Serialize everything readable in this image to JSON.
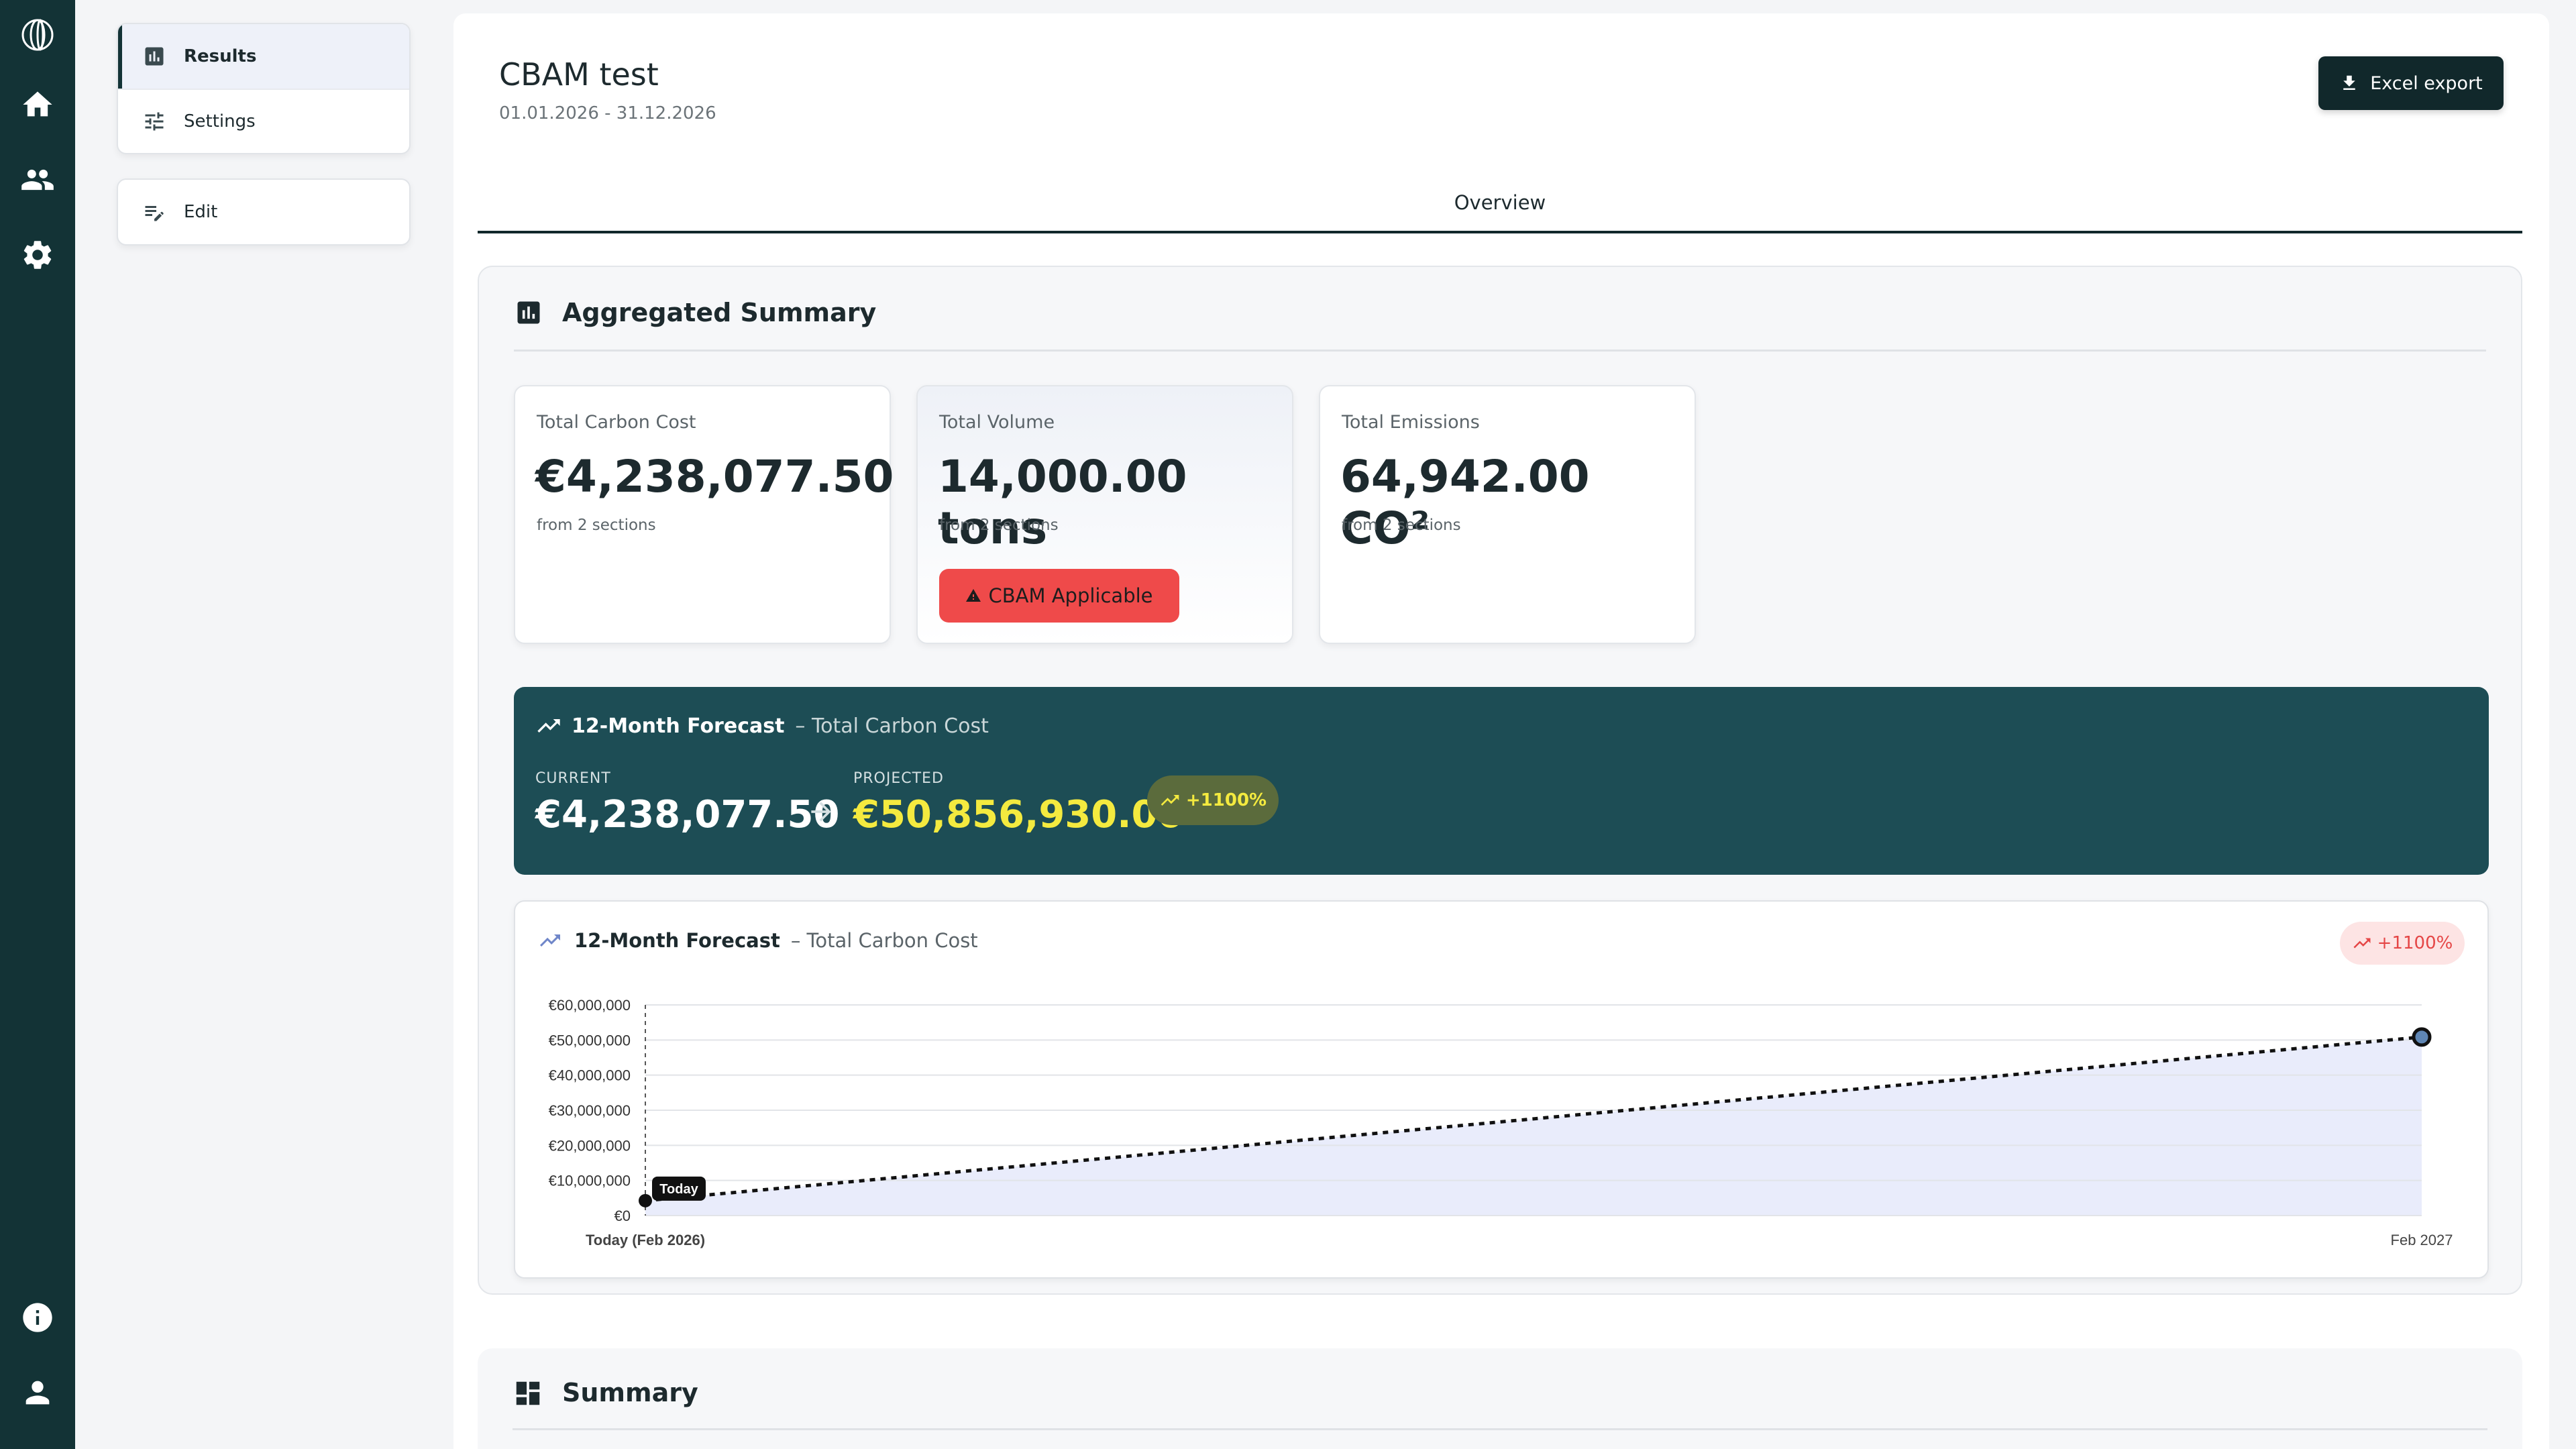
{
  "rail": {
    "icons": [
      "logo-icon",
      "home-icon",
      "people-icon",
      "gear-icon",
      "info-icon",
      "person-icon"
    ]
  },
  "nav": {
    "results_label": "Results",
    "settings_label": "Settings",
    "edit_label": "Edit"
  },
  "page": {
    "title": "CBAM test",
    "date_range": "01.01.2026 - 31.12.2026",
    "export_label": "Excel export"
  },
  "tabs": [
    {
      "label": "Overview",
      "active": true
    }
  ],
  "aggregated": {
    "title": "Aggregated Summary",
    "cards": [
      {
        "label": "Total Carbon Cost",
        "value": "€4,238,077.50",
        "sub": "from 2 sections"
      },
      {
        "label": "Total Volume",
        "value": "14,000.00 tons",
        "sub": "from 2 sections",
        "badge": "CBAM Applicable"
      },
      {
        "label": "Total Emissions",
        "value": "64,942.00 CO²",
        "sub": "from 2 sections"
      }
    ]
  },
  "forecast_banner": {
    "title": "12-Month Forecast",
    "subtitle": "– Total Carbon Cost",
    "current_label": "CURRENT",
    "current_value": "€4,238,077.50",
    "projected_label": "PROJECTED",
    "projected_value": "€50,856,930.00",
    "change": "+1100%"
  },
  "forecast_chart": {
    "title": "12-Month Forecast",
    "subtitle": "– Total Carbon Cost",
    "change": "+1100%",
    "today_marker": "Today",
    "x_start_label": "Today (Feb 2026)",
    "x_end_label": "Feb 2027"
  },
  "chart_data": {
    "type": "area",
    "x": [
      "Today (Feb 2026)",
      "Feb 2027"
    ],
    "series": [
      {
        "values": [
          4238077.5,
          50856930.0
        ]
      }
    ],
    "ytick_labels": [
      "€0",
      "€10,000,000",
      "€20,000,000",
      "€30,000,000",
      "€40,000,000",
      "€50,000,000",
      "€60,000,000"
    ],
    "ylim": [
      0,
      60000000
    ],
    "grid": true,
    "line_style": "dotted",
    "fill": "#e9ecfb",
    "marker_label": "Today"
  },
  "summary": {
    "title": "Summary"
  },
  "colors": {
    "rail": "#133336",
    "banner": "#1d4d55",
    "projected": "#f4ea3f",
    "alert": "#ef4a4a",
    "chart_fill": "#e9ecfb"
  }
}
